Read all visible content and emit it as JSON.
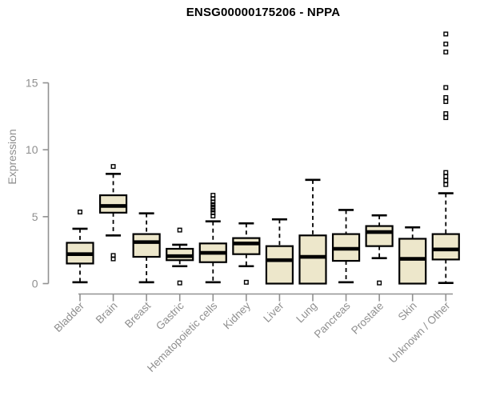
{
  "title": "ENSG00000175206 - NPPA",
  "colors": {
    "background": "#ffffff",
    "box_fill": "#ede7cb",
    "box_stroke": "#000000",
    "median_stroke": "#000000",
    "whisker_stroke": "#000000",
    "outlier_stroke": "#000000",
    "axis_line": "#919191",
    "axis_text": "#8f8f8f",
    "title_text": "#000000"
  },
  "icons": {
    "outlier_marker": "open-square"
  },
  "chart_data": {
    "type": "boxplot",
    "title": "ENSG00000175206 - NPPA",
    "xlabel": "",
    "ylabel": "Expression",
    "ylim": [
      0,
      19
    ],
    "yticks": [
      0,
      5,
      10,
      15
    ],
    "grid": false,
    "legend": false,
    "whisker_style": "dashed",
    "categories": [
      "Bladder",
      "Brain",
      "Breast",
      "Gastric",
      "Hematopoietic cells",
      "Kidney",
      "Liver",
      "Lung",
      "Pancreas",
      "Prostate",
      "Skin",
      "Unknown / Other"
    ],
    "series": [
      {
        "name": "Bladder",
        "low": 0.1,
        "q1": 1.5,
        "median": 2.2,
        "q3": 3.05,
        "high": 4.1,
        "outliers": [
          5.35
        ]
      },
      {
        "name": "Brain",
        "low": 3.6,
        "q1": 5.3,
        "median": 5.8,
        "q3": 6.6,
        "high": 8.2,
        "outliers": [
          8.75,
          2.1,
          1.85
        ]
      },
      {
        "name": "Breast",
        "low": 0.1,
        "q1": 2.0,
        "median": 3.1,
        "q3": 3.7,
        "high": 5.25,
        "outliers": []
      },
      {
        "name": "Gastric",
        "low": 1.3,
        "q1": 1.75,
        "median": 2.05,
        "q3": 2.6,
        "high": 2.9,
        "outliers": [
          4.0,
          0.05
        ]
      },
      {
        "name": "Hematopoietic cells",
        "low": 0.1,
        "q1": 1.6,
        "median": 2.3,
        "q3": 3.0,
        "high": 4.65,
        "outliers": [
          6.6,
          6.35,
          6.1,
          5.9,
          5.7,
          5.5,
          5.3,
          5.05
        ]
      },
      {
        "name": "Kidney",
        "low": 1.3,
        "q1": 2.2,
        "median": 3.0,
        "q3": 3.4,
        "high": 4.5,
        "outliers": [
          0.1
        ]
      },
      {
        "name": "Liver",
        "low": 0.0,
        "q1": 0.0,
        "median": 1.75,
        "q3": 2.8,
        "high": 4.8,
        "outliers": []
      },
      {
        "name": "Lung",
        "low": 0.0,
        "q1": 0.0,
        "median": 2.0,
        "q3": 3.6,
        "high": 7.75,
        "outliers": []
      },
      {
        "name": "Pancreas",
        "low": 0.1,
        "q1": 1.7,
        "median": 2.6,
        "q3": 3.7,
        "high": 5.5,
        "outliers": []
      },
      {
        "name": "Prostate",
        "low": 1.9,
        "q1": 2.8,
        "median": 3.85,
        "q3": 4.3,
        "high": 5.1,
        "outliers": [
          0.05
        ]
      },
      {
        "name": "Skin",
        "low": 0.0,
        "q1": 0.0,
        "median": 1.85,
        "q3": 3.35,
        "high": 4.2,
        "outliers": []
      },
      {
        "name": "Unknown / Other",
        "low": 0.05,
        "q1": 1.8,
        "median": 2.55,
        "q3": 3.7,
        "high": 6.75,
        "outliers": [
          18.65,
          17.9,
          17.3,
          14.65,
          13.9,
          13.6,
          12.7,
          12.4,
          8.3,
          8.0,
          7.7,
          7.4
        ]
      }
    ]
  }
}
